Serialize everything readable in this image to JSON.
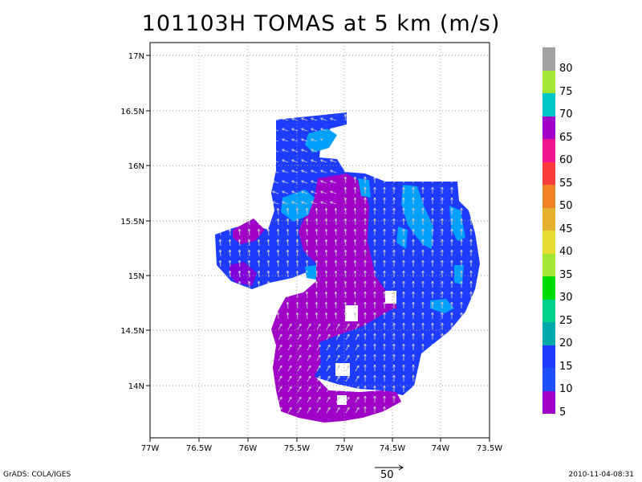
{
  "title": "101103H TOMAS at 5 km (m/s)",
  "footer": {
    "left": "GrADS: COLA/IGES",
    "right": "2010-11-04-08:31",
    "ref_vector_label": "50"
  },
  "map": {
    "lat_ticks": [
      "17N",
      "16.5N",
      "16N",
      "15.5N",
      "15N",
      "14.5N",
      "14N"
    ],
    "lon_ticks": [
      "77W",
      "76.5W",
      "76W",
      "75.5W",
      "75W",
      "74.5W",
      "74W",
      "73.5W"
    ]
  },
  "colorbar": {
    "labels": [
      "80",
      "75",
      "70",
      "65",
      "60",
      "55",
      "50",
      "45",
      "40",
      "35",
      "30",
      "25",
      "20",
      "15",
      "10",
      "5"
    ],
    "colors": [
      "#a0a0a0",
      "#a0e632",
      "#00c8c8",
      "#a000c8",
      "#f0148c",
      "#fa3c3c",
      "#f08228",
      "#e6af2d",
      "#e6dc32",
      "#a0e632",
      "#00dc00",
      "#00d28c",
      "#00aaaa",
      "#1e3cff",
      "#1e50fa",
      "#a000c8"
    ]
  },
  "colors": {
    "purple": "#a000c8",
    "violet": "#8200dc",
    "blue": "#1e3cff",
    "light_blue": "#00a0ff",
    "arrow": "#c8c8c8"
  }
}
